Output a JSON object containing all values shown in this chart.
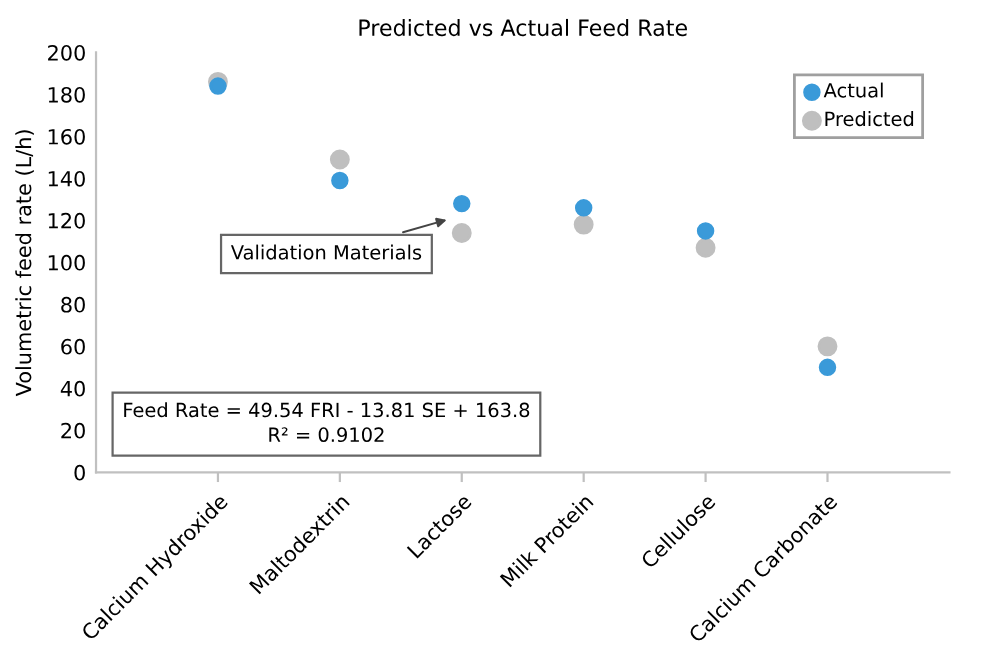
{
  "chart_data": {
    "type": "scatter",
    "title": "Predicted vs Actual Feed Rate",
    "ylabel": "Volumetric feed rate (L/h)",
    "categories": [
      "Calcium Hydroxide",
      "Maltodextrin",
      "Lactose",
      "Milk Protein",
      "Cellulose",
      "Calcium Carbonate"
    ],
    "series": [
      {
        "name": "Actual",
        "color": "#3a9ad9",
        "values": [
          184,
          139,
          128,
          126,
          115,
          50
        ]
      },
      {
        "name": "Predicted",
        "color": "#bfbfbf",
        "values": [
          186,
          149,
          114,
          118,
          107,
          60
        ]
      }
    ],
    "ylim": [
      0,
      200
    ],
    "yticks": [
      0,
      20,
      40,
      60,
      80,
      100,
      120,
      140,
      160,
      180,
      200
    ],
    "annotations": [
      {
        "text": "Validation Materials",
        "x": "Lactose",
        "y": 128
      },
      "Feed Rate = 49.54 FRI - 13.81 SE + 163.8\nR² = 0.9102"
    ],
    "grid": false,
    "legend": "top right",
    "marker": "circle"
  }
}
